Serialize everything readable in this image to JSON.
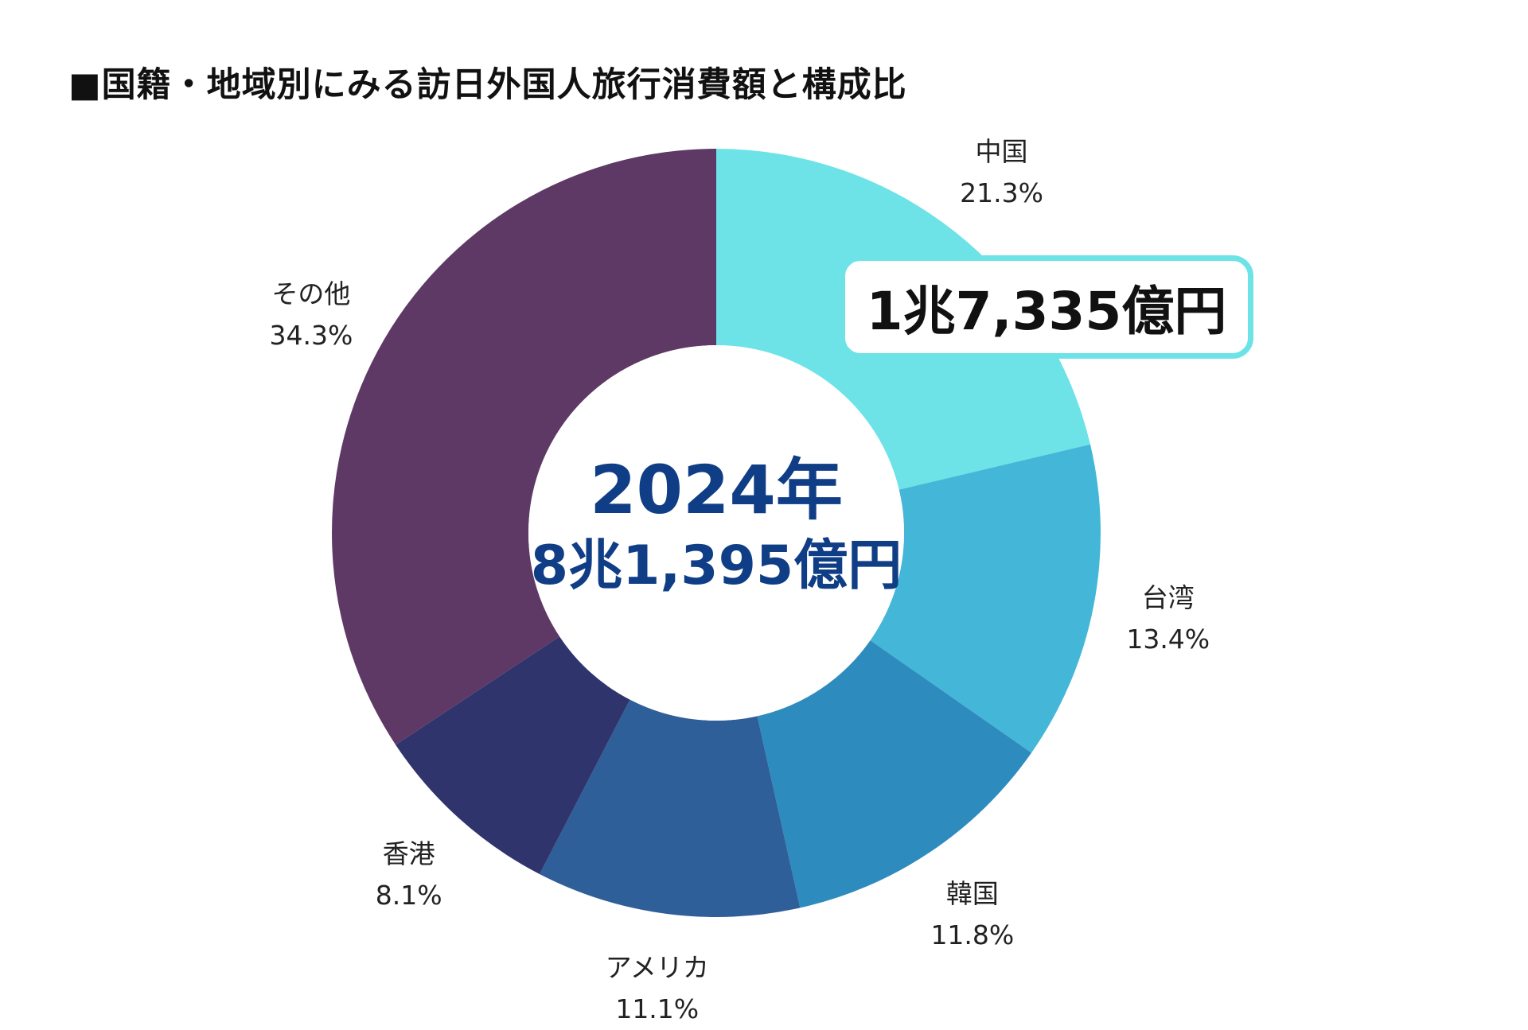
{
  "chart_data": {
    "type": "pie",
    "title": "■国籍・地域別にみる訪日外国人旅行消費額と構成比",
    "center_text": {
      "year": "2024年",
      "total": "8兆1,395億円"
    },
    "callout": {
      "text": "1兆7,335億円",
      "category": "中国"
    },
    "categories": [
      "中国",
      "台湾",
      "韓国",
      "アメリカ",
      "香港",
      "その他"
    ],
    "values": [
      21.3,
      13.4,
      11.8,
      11.1,
      8.1,
      34.3
    ],
    "value_labels": [
      "21.3%",
      "13.4%",
      "11.8%",
      "11.1%",
      "8.1%",
      "34.3%"
    ],
    "colors": [
      "#6de3e8",
      "#44b7d8",
      "#2e8bbd",
      "#2f5f98",
      "#2f356c",
      "#5e3966"
    ]
  }
}
